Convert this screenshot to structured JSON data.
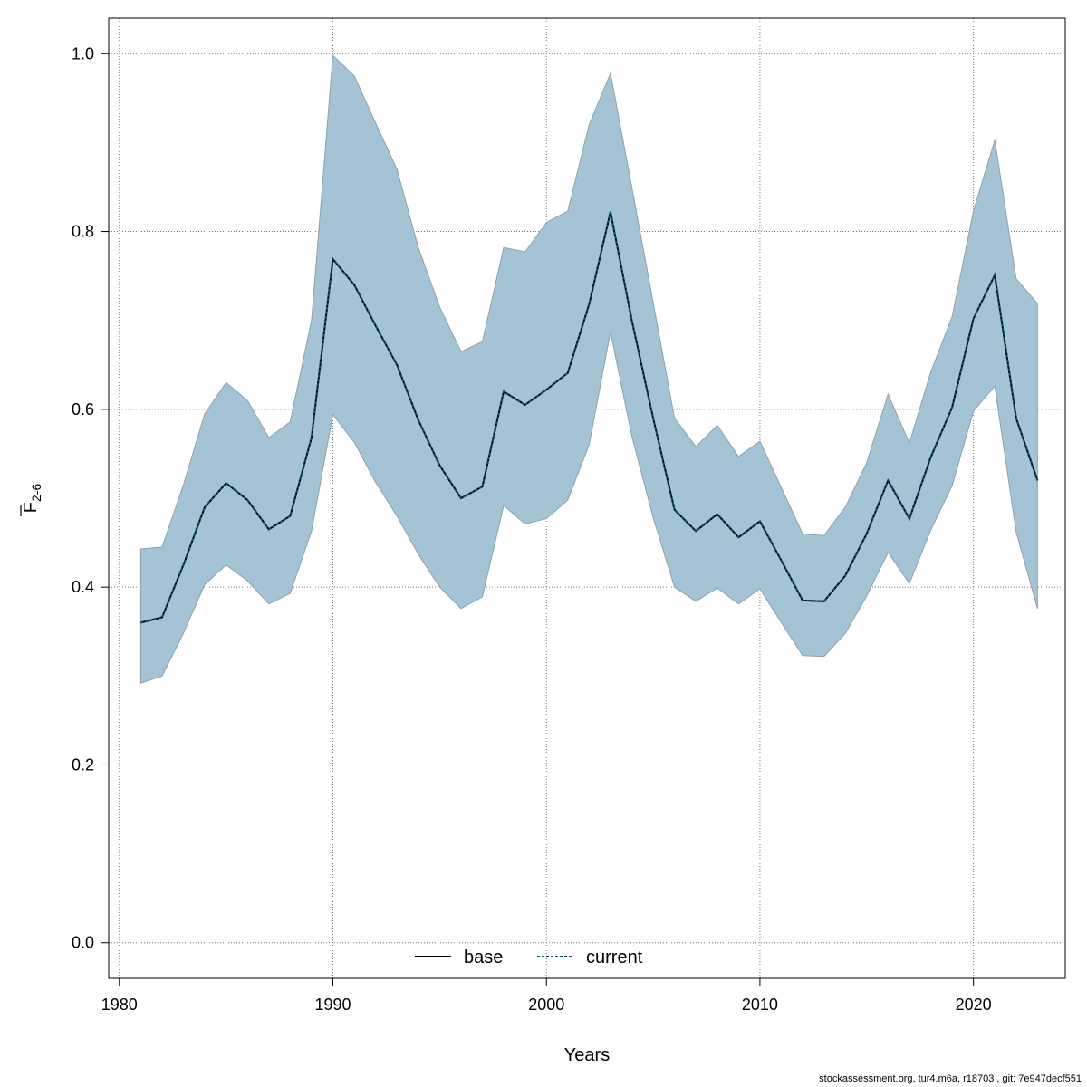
{
  "chart_data": {
    "type": "area",
    "xlabel": "Years",
    "ylabel_main": "F",
    "ylabel_sub": "2-6",
    "xlim": [
      1979.5,
      2024.3
    ],
    "ylim": [
      -0.04,
      1.04
    ],
    "x_ticks": [
      1980,
      1990,
      2000,
      2010,
      2020
    ],
    "y_ticks": [
      0.0,
      0.2,
      0.4,
      0.6,
      0.8,
      1.0
    ],
    "y_tick_labels": [
      "0.0",
      "0.2",
      "0.4",
      "0.6",
      "0.8",
      "1.0"
    ],
    "grid": true,
    "legend_position": "bottom",
    "colors": {
      "band_fill": "#a4c3d4",
      "band_stroke": "#8fa1ab",
      "base_line": "#000000",
      "current_line": "#08506e",
      "grid": "#777777"
    },
    "x": [
      1981,
      1982,
      1983,
      1984,
      1985,
      1986,
      1987,
      1988,
      1989,
      1990,
      1991,
      1992,
      1993,
      1994,
      1995,
      1996,
      1997,
      1998,
      1999,
      2000,
      2001,
      2002,
      2003,
      2004,
      2005,
      2006,
      2007,
      2008,
      2009,
      2010,
      2011,
      2012,
      2013,
      2014,
      2015,
      2016,
      2017,
      2018,
      2019,
      2020,
      2021,
      2022,
      2023
    ],
    "band_upper": [
      0.443,
      0.445,
      0.515,
      0.595,
      0.63,
      0.61,
      0.568,
      0.586,
      0.7,
      0.998,
      0.975,
      0.922,
      0.87,
      0.782,
      0.715,
      0.665,
      0.676,
      0.782,
      0.777,
      0.81,
      0.823,
      0.92,
      0.978,
      0.85,
      0.72,
      0.59,
      0.558,
      0.582,
      0.547,
      0.564,
      0.512,
      0.46,
      0.458,
      0.49,
      0.54,
      0.617,
      0.562,
      0.642,
      0.704,
      0.823,
      0.903,
      0.747,
      0.719
    ],
    "band_lower": [
      0.292,
      0.3,
      0.348,
      0.403,
      0.425,
      0.407,
      0.381,
      0.393,
      0.463,
      0.594,
      0.563,
      0.518,
      0.48,
      0.437,
      0.4,
      0.376,
      0.389,
      0.492,
      0.471,
      0.477,
      0.498,
      0.56,
      0.687,
      0.57,
      0.478,
      0.4,
      0.384,
      0.399,
      0.381,
      0.398,
      0.36,
      0.323,
      0.322,
      0.348,
      0.39,
      0.439,
      0.404,
      0.464,
      0.514,
      0.598,
      0.626,
      0.462,
      0.376
    ],
    "series": [
      {
        "name": "base",
        "values": [
          0.36,
          0.366,
          0.425,
          0.49,
          0.517,
          0.498,
          0.465,
          0.48,
          0.568,
          0.769,
          0.74,
          0.694,
          0.65,
          0.588,
          0.537,
          0.5,
          0.513,
          0.62,
          0.605,
          0.622,
          0.641,
          0.718,
          0.822,
          0.7,
          0.59,
          0.487,
          0.463,
          0.482,
          0.456,
          0.474,
          0.43,
          0.385,
          0.384,
          0.413,
          0.46,
          0.52,
          0.477,
          0.546,
          0.602,
          0.702,
          0.751,
          0.59,
          0.52
        ]
      },
      {
        "name": "current",
        "values": [
          0.36,
          0.366,
          0.425,
          0.49,
          0.517,
          0.498,
          0.465,
          0.48,
          0.568,
          0.769,
          0.74,
          0.694,
          0.65,
          0.588,
          0.537,
          0.5,
          0.513,
          0.62,
          0.605,
          0.622,
          0.641,
          0.718,
          0.822,
          0.7,
          0.59,
          0.487,
          0.463,
          0.482,
          0.456,
          0.474,
          0.43,
          0.385,
          0.384,
          0.413,
          0.46,
          0.52,
          0.477,
          0.546,
          0.602,
          0.702,
          0.751,
          0.59,
          0.52
        ]
      }
    ]
  },
  "footer_text": "stockassessment.org, tur4.m6a, r18703 , git: 7e947decf551"
}
